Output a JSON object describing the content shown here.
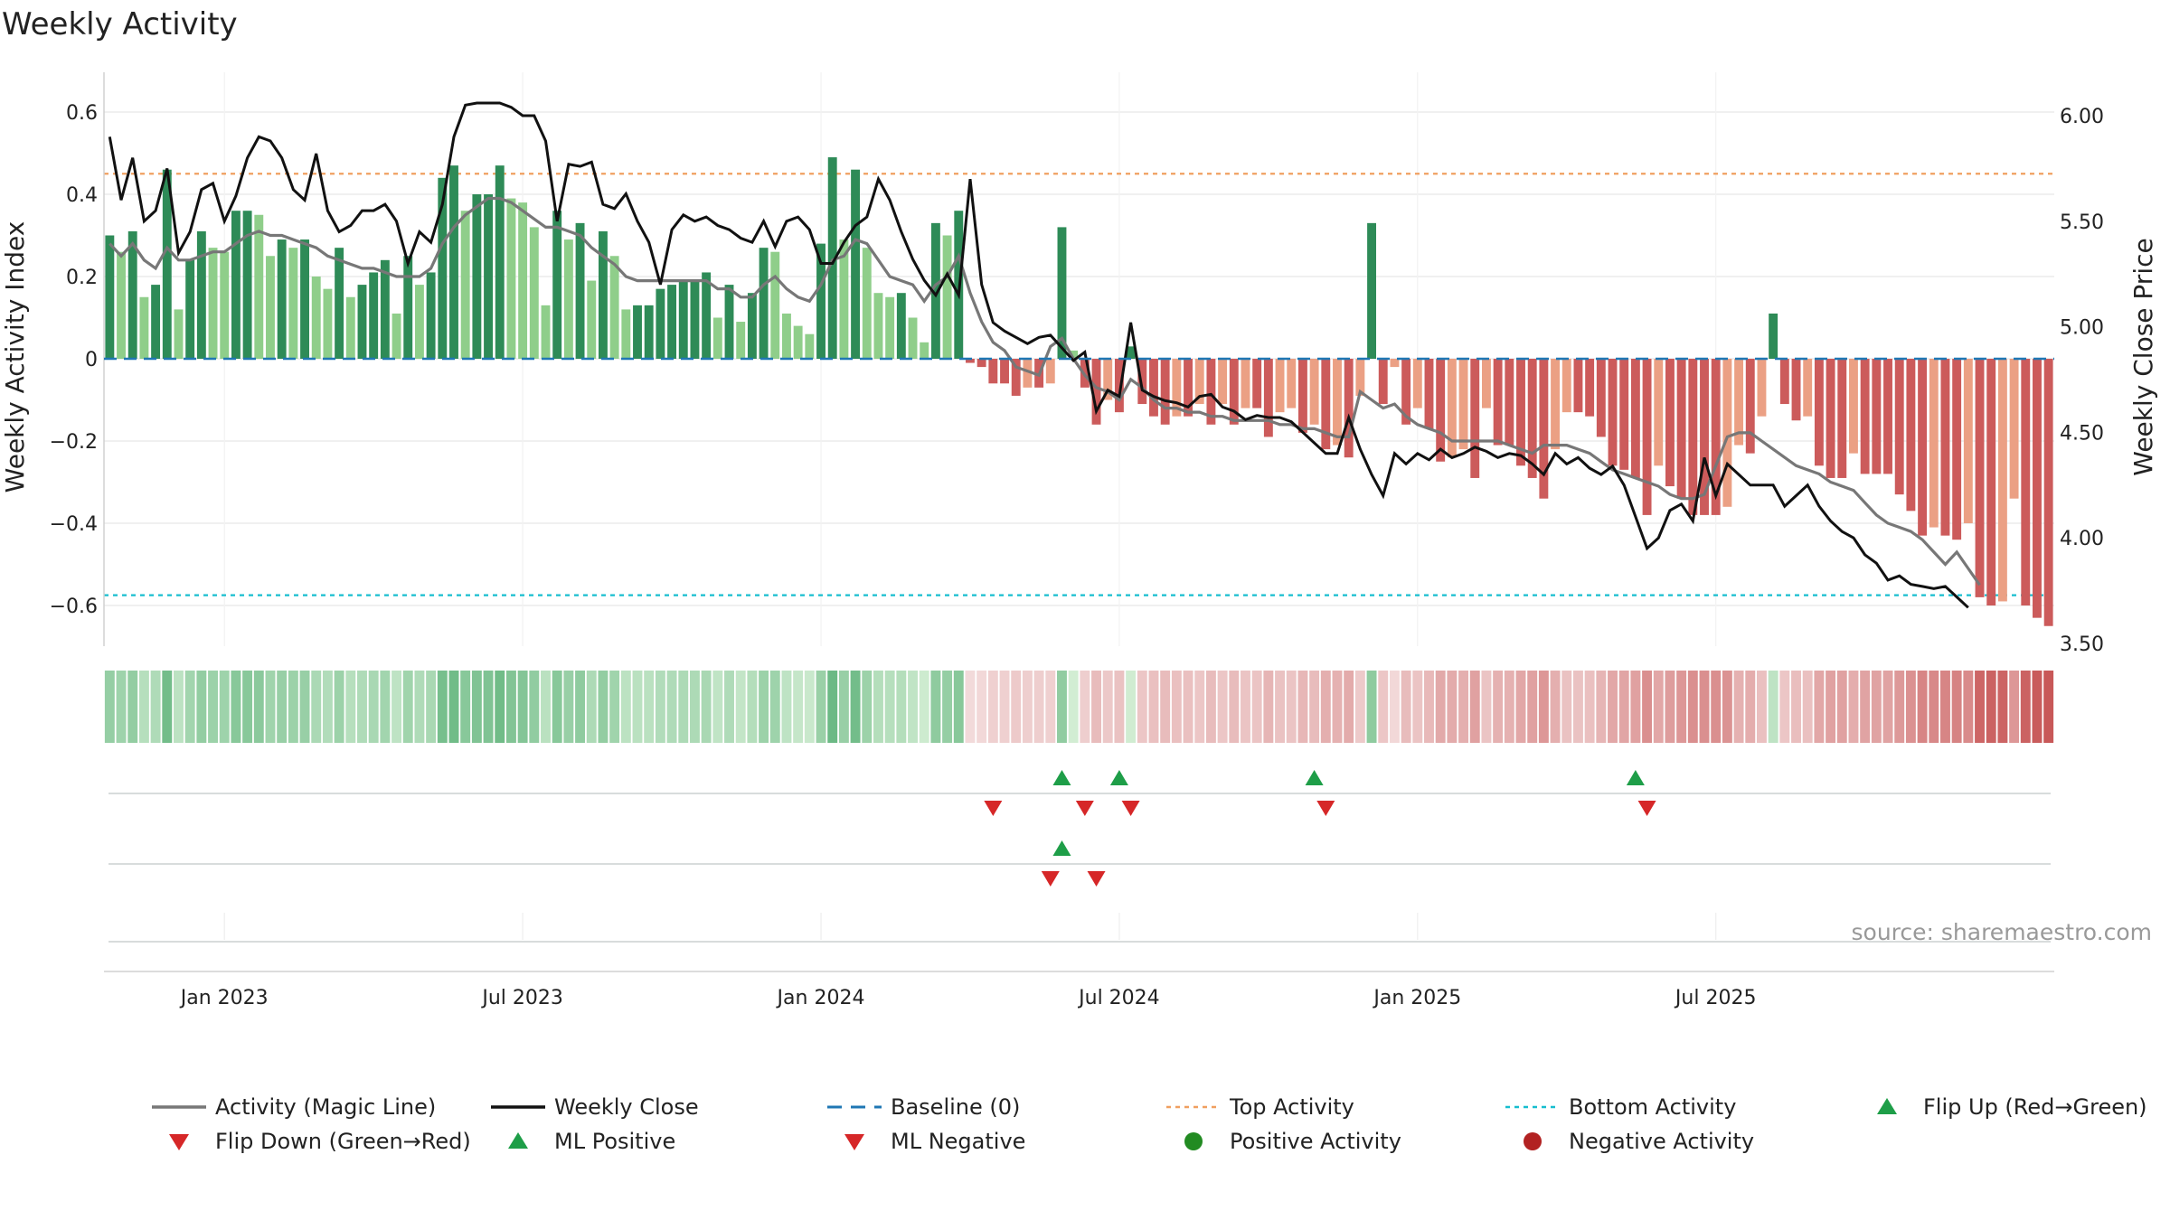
{
  "chart_data": {
    "type": "bar",
    "title": "Weekly Activity",
    "ylabel": "Weekly Activity Index",
    "y2label": "Weekly Close Price",
    "source": "source: sharemaestro.com",
    "ylim": [
      -0.7,
      0.7
    ],
    "y2lim": [
      3.5,
      6.25
    ],
    "yticks": [
      0.6,
      0.4,
      0.2,
      0,
      -0.2,
      -0.4,
      -0.6
    ],
    "yticklabels": [
      "0.6",
      "0.4",
      "0.2",
      "0",
      "−0.2",
      "−0.4",
      "−0.6"
    ],
    "y2ticks": [
      6.0,
      5.5,
      5.0,
      4.5,
      4.0,
      3.5
    ],
    "y2ticklabels": [
      "6.00",
      "5.50",
      "5.00",
      "4.50",
      "4.00",
      "3.50"
    ],
    "xticks": [
      10,
      36,
      62,
      88,
      114,
      140
    ],
    "xticklabels": [
      "Jan 2023",
      "Jul 2023",
      "Jan 2024",
      "Jul 2024",
      "Jan 2025",
      "Jul 2025"
    ],
    "top_activity": 0.45,
    "bottom_activity": -0.575,
    "activity": [
      0.3,
      0.26,
      0.31,
      0.15,
      0.18,
      0.46,
      0.12,
      0.24,
      0.31,
      0.27,
      0.26,
      0.36,
      0.36,
      0.35,
      0.25,
      0.29,
      0.27,
      0.29,
      0.2,
      0.17,
      0.27,
      0.15,
      0.18,
      0.21,
      0.24,
      0.11,
      0.25,
      0.18,
      0.21,
      0.44,
      0.47,
      0.36,
      0.4,
      0.4,
      0.47,
      0.39,
      0.38,
      0.32,
      0.13,
      0.36,
      0.29,
      0.33,
      0.19,
      0.31,
      0.25,
      0.12,
      0.13,
      0.13,
      0.17,
      0.18,
      0.19,
      0.19,
      0.21,
      0.1,
      0.18,
      0.09,
      0.16,
      0.27,
      0.26,
      0.11,
      0.08,
      0.06,
      0.28,
      0.49,
      0.29,
      0.46,
      0.27,
      0.16,
      0.15,
      0.16,
      0.1,
      0.04,
      0.33,
      0.3,
      0.36,
      -0.01,
      -0.02,
      -0.06,
      -0.06,
      -0.09,
      -0.07,
      -0.07,
      -0.06,
      0.32,
      0.02,
      -0.07,
      -0.16,
      -0.1,
      -0.13,
      0.03,
      -0.11,
      -0.14,
      -0.16,
      -0.14,
      -0.14,
      -0.11,
      -0.16,
      -0.11,
      -0.16,
      -0.12,
      -0.12,
      -0.19,
      -0.13,
      -0.12,
      -0.18,
      -0.16,
      -0.22,
      -0.21,
      -0.24,
      -0.09,
      0.33,
      -0.11,
      -0.02,
      -0.16,
      -0.12,
      -0.17,
      -0.25,
      -0.24,
      -0.22,
      -0.29,
      -0.12,
      -0.21,
      -0.21,
      -0.26,
      -0.29,
      -0.34,
      -0.22,
      -0.13,
      -0.13,
      -0.14,
      -0.19,
      -0.26,
      -0.27,
      -0.29,
      -0.38,
      -0.26,
      -0.31,
      -0.34,
      -0.38,
      -0.38,
      -0.38,
      -0.36,
      -0.21,
      -0.23,
      -0.14,
      0.11,
      -0.11,
      -0.15,
      -0.14,
      -0.26,
      -0.29,
      -0.29,
      -0.23,
      -0.28,
      -0.28,
      -0.28,
      -0.33,
      -0.37,
      -0.43,
      -0.41,
      -0.43,
      -0.44,
      -0.4,
      -0.58,
      -0.6,
      -0.59,
      -0.34,
      -0.6,
      -0.63,
      -0.65
    ],
    "magic_line": [
      0.28,
      0.25,
      0.28,
      0.24,
      0.22,
      0.27,
      0.24,
      0.24,
      0.25,
      0.26,
      0.26,
      0.28,
      0.3,
      0.31,
      0.3,
      0.3,
      0.29,
      0.28,
      0.27,
      0.25,
      0.24,
      0.23,
      0.22,
      0.22,
      0.21,
      0.2,
      0.2,
      0.2,
      0.22,
      0.28,
      0.32,
      0.35,
      0.37,
      0.39,
      0.39,
      0.38,
      0.36,
      0.34,
      0.32,
      0.32,
      0.31,
      0.3,
      0.27,
      0.25,
      0.23,
      0.2,
      0.19,
      0.19,
      0.19,
      0.19,
      0.19,
      0.19,
      0.19,
      0.17,
      0.17,
      0.15,
      0.15,
      0.18,
      0.2,
      0.17,
      0.15,
      0.14,
      0.18,
      0.24,
      0.25,
      0.29,
      0.28,
      0.24,
      0.2,
      0.19,
      0.18,
      0.14,
      0.18,
      0.2,
      0.25,
      0.16,
      0.09,
      0.04,
      0.02,
      -0.02,
      -0.03,
      -0.04,
      0.03,
      0.05,
      0.0,
      -0.04,
      -0.07,
      -0.08,
      -0.1,
      -0.05,
      -0.07,
      -0.1,
      -0.12,
      -0.12,
      -0.13,
      -0.13,
      -0.14,
      -0.14,
      -0.15,
      -0.15,
      -0.15,
      -0.15,
      -0.16,
      -0.16,
      -0.17,
      -0.17,
      -0.18,
      -0.19,
      -0.19,
      -0.08,
      -0.1,
      -0.12,
      -0.11,
      -0.14,
      -0.16,
      -0.17,
      -0.18,
      -0.2,
      -0.2,
      -0.2,
      -0.2,
      -0.2,
      -0.21,
      -0.22,
      -0.23,
      -0.21,
      -0.21,
      -0.21,
      -0.22,
      -0.23,
      -0.25,
      -0.27,
      -0.28,
      -0.29,
      -0.3,
      -0.31,
      -0.33,
      -0.34,
      -0.34,
      -0.33,
      -0.26,
      -0.19,
      -0.18,
      -0.18,
      -0.2,
      -0.22,
      -0.24,
      -0.26,
      -0.27,
      -0.28,
      -0.3,
      -0.31,
      -0.32,
      -0.35,
      -0.38,
      -0.4,
      -0.41,
      -0.42,
      -0.44,
      -0.47,
      -0.5,
      -0.47,
      -0.51,
      -0.55
    ],
    "weekly_close": [
      5.9,
      5.6,
      5.8,
      5.5,
      5.55,
      5.75,
      5.35,
      5.45,
      5.65,
      5.68,
      5.5,
      5.62,
      5.8,
      5.9,
      5.88,
      5.8,
      5.65,
      5.6,
      5.82,
      5.55,
      5.45,
      5.48,
      5.55,
      5.55,
      5.58,
      5.5,
      5.3,
      5.45,
      5.4,
      5.58,
      5.9,
      6.05,
      6.06,
      6.06,
      6.06,
      6.04,
      6.0,
      6.0,
      5.88,
      5.5,
      5.77,
      5.76,
      5.78,
      5.58,
      5.56,
      5.63,
      5.5,
      5.4,
      5.2,
      5.46,
      5.53,
      5.5,
      5.52,
      5.48,
      5.46,
      5.42,
      5.4,
      5.5,
      5.38,
      5.5,
      5.52,
      5.46,
      5.3,
      5.3,
      5.4,
      5.48,
      5.52,
      5.7,
      5.6,
      5.45,
      5.32,
      5.22,
      5.15,
      5.25,
      5.15,
      5.7,
      5.2,
      5.02,
      4.98,
      4.95,
      4.92,
      4.95,
      4.96,
      4.9,
      4.84,
      4.88,
      4.6,
      4.7,
      4.67,
      5.02,
      4.7,
      4.67,
      4.65,
      4.64,
      4.62,
      4.67,
      4.68,
      4.62,
      4.6,
      4.56,
      4.58,
      4.57,
      4.57,
      4.55,
      4.5,
      4.45,
      4.4,
      4.4,
      4.57,
      4.42,
      4.3,
      4.2,
      4.4,
      4.35,
      4.4,
      4.37,
      4.42,
      4.38,
      4.4,
      4.43,
      4.41,
      4.38,
      4.4,
      4.39,
      4.35,
      4.3,
      4.4,
      4.35,
      4.38,
      4.33,
      4.3,
      4.34,
      4.25,
      4.1,
      3.95,
      4.0,
      4.13,
      4.16,
      4.08,
      4.38,
      4.2,
      4.35,
      4.3,
      4.25,
      4.25,
      4.25,
      4.15,
      4.2,
      4.25,
      4.15,
      4.08,
      4.03,
      4.0,
      3.92,
      3.88,
      3.8,
      3.82,
      3.78,
      3.77,
      3.76,
      3.77,
      3.72,
      3.67
    ],
    "flip_up": [
      83,
      88,
      105,
      133
    ],
    "flip_down": [
      77,
      85,
      89,
      106,
      134
    ],
    "ml_positive": [
      83
    ],
    "ml_negative": [
      82,
      86
    ],
    "legend": [
      "Activity (Magic Line)",
      "Weekly Close",
      "Baseline (0)",
      "Top Activity",
      "Bottom Activity",
      "Flip Up (Red→Green)",
      "Flip Down (Green→Red)",
      "ML Positive",
      "ML Negative",
      "Positive Activity",
      "Negative Activity"
    ],
    "legend_placement": "bottom"
  },
  "colors": {
    "pos_dark": "#2e8b57",
    "pos_light": "#8fce8a",
    "neg_dark": "#cc5b5b",
    "neg_light": "#eba084",
    "magic_line": "#777777",
    "close": "#111111",
    "baseline": "#1f77b4",
    "top": "#f0a060",
    "bottom": "#17becf",
    "marker_up": "#1e9e48",
    "marker_down": "#d62728",
    "dot_pos": "#228b22",
    "dot_neg": "#b22222"
  }
}
